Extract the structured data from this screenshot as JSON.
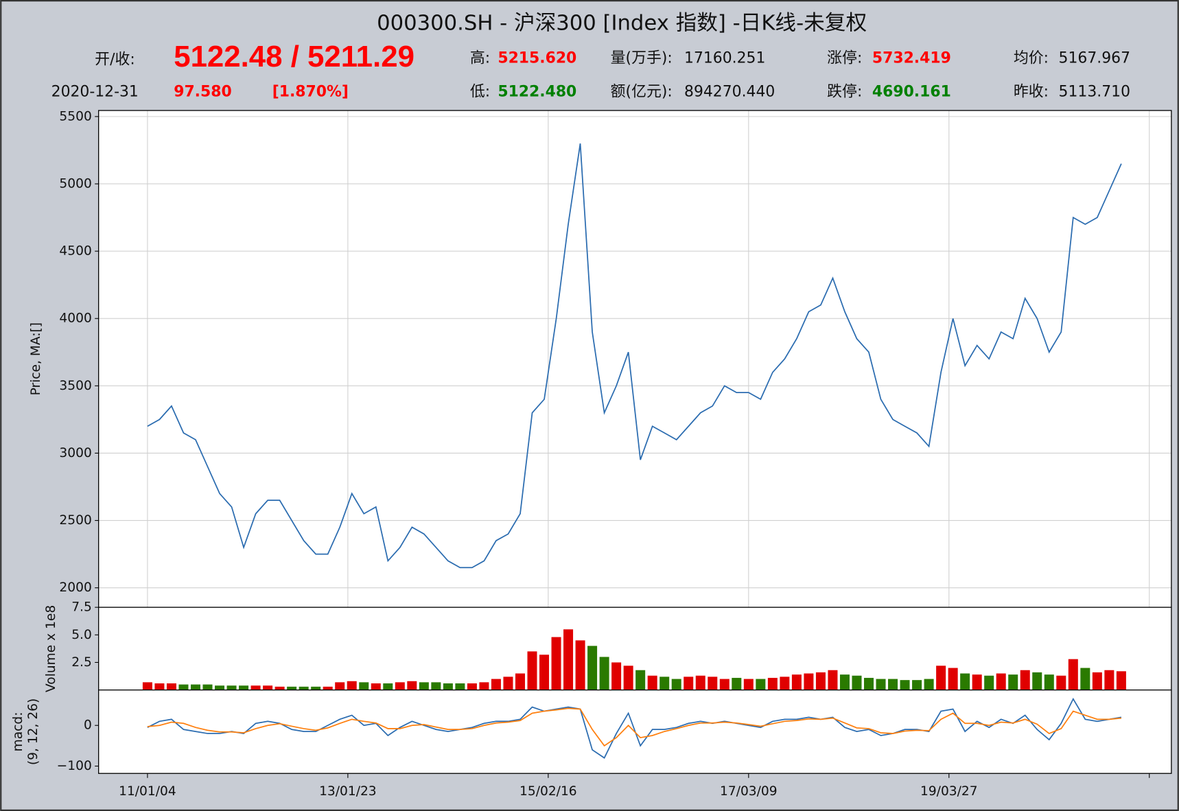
{
  "header": {
    "title": "000300.SH - 沪深300 [Index 指数] -日K线-未复权",
    "items": [
      "开/收:",
      "5122.48 / 5211.29",
      "高:",
      "5215.620",
      "量(万手):",
      "17160.251",
      "涨停:",
      "5732.419",
      "均价:",
      "5167.967",
      "2020-12-31",
      "97.580",
      "[1.870%]",
      "低:",
      "5122.480",
      "额(亿元):",
      "894270.440",
      "跌停:",
      "4690.161",
      "昨收:",
      "5113.710"
    ]
  },
  "chart_data": [
    {
      "type": "line",
      "ylabel": "Price, MA:[]",
      "color": "#2b6cb0",
      "grid": true,
      "xlim": [
        -122,
        2555
      ],
      "ylim": [
        1855,
        5545
      ],
      "yticks": [
        2000,
        2500,
        3000,
        3500,
        4000,
        4500,
        5000,
        5500
      ],
      "xticks": [
        0,
        500,
        1000,
        1500,
        2000,
        2500
      ],
      "x": [
        0,
        30,
        60,
        90,
        120,
        150,
        180,
        210,
        240,
        270,
        300,
        330,
        360,
        390,
        420,
        450,
        480,
        510,
        540,
        570,
        600,
        630,
        660,
        690,
        720,
        750,
        780,
        810,
        840,
        870,
        900,
        930,
        960,
        990,
        1020,
        1050,
        1080,
        1110,
        1140,
        1170,
        1200,
        1230,
        1260,
        1290,
        1320,
        1350,
        1380,
        1410,
        1440,
        1470,
        1500,
        1530,
        1560,
        1590,
        1620,
        1650,
        1680,
        1710,
        1740,
        1770,
        1800,
        1830,
        1860,
        1890,
        1920,
        1950,
        1980,
        2010,
        2040,
        2070,
        2100,
        2130,
        2160,
        2190,
        2220,
        2250,
        2280,
        2310,
        2340,
        2370,
        2400,
        2430
      ],
      "values": [
        3200,
        3250,
        3350,
        3150,
        3100,
        2900,
        2700,
        2600,
        2300,
        2550,
        2650,
        2650,
        2500,
        2350,
        2250,
        2250,
        2450,
        2700,
        2550,
        2600,
        2200,
        2300,
        2450,
        2400,
        2300,
        2200,
        2150,
        2150,
        2200,
        2350,
        2400,
        2550,
        3300,
        3400,
        4000,
        4700,
        5300,
        3900,
        3300,
        3500,
        3750,
        2950,
        3200,
        3150,
        3100,
        3200,
        3300,
        3350,
        3500,
        3450,
        3450,
        3400,
        3600,
        3700,
        3850,
        4050,
        4100,
        4300,
        4050,
        3850,
        3750,
        3400,
        3250,
        3200,
        3150,
        3050,
        3600,
        4000,
        3650,
        3800,
        3700,
        3900,
        3850,
        4150,
        4000,
        3750,
        3900,
        4750,
        4700,
        4750,
        4950,
        5150
      ]
    },
    {
      "type": "bar",
      "ylabel": "Volume x 1e8",
      "grid": false,
      "xlim": [
        -122,
        2555
      ],
      "ylim": [
        0,
        7.5
      ],
      "yticks": [
        2.5,
        {
          "value": 5,
          "label": "5.0"
        },
        7.5
      ],
      "x": [
        0,
        30,
        60,
        90,
        120,
        150,
        180,
        210,
        240,
        270,
        300,
        330,
        360,
        390,
        420,
        450,
        480,
        510,
        540,
        570,
        600,
        630,
        660,
        690,
        720,
        750,
        780,
        810,
        840,
        870,
        900,
        930,
        960,
        990,
        1020,
        1050,
        1080,
        1110,
        1140,
        1170,
        1200,
        1230,
        1260,
        1290,
        1320,
        1350,
        1380,
        1410,
        1440,
        1470,
        1500,
        1530,
        1560,
        1590,
        1620,
        1650,
        1680,
        1710,
        1740,
        1770,
        1800,
        1830,
        1860,
        1890,
        1920,
        1950,
        1980,
        2010,
        2040,
        2070,
        2100,
        2130,
        2160,
        2190,
        2220,
        2250,
        2280,
        2310,
        2340,
        2370,
        2400,
        2430
      ],
      "values": [
        0.7,
        0.6,
        0.6,
        0.5,
        0.5,
        0.5,
        0.4,
        0.4,
        0.4,
        0.4,
        0.4,
        0.3,
        0.3,
        0.3,
        0.3,
        0.3,
        0.7,
        0.8,
        0.7,
        0.6,
        0.6,
        0.7,
        0.8,
        0.7,
        0.7,
        0.6,
        0.6,
        0.6,
        0.7,
        1.0,
        1.2,
        1.5,
        3.5,
        3.2,
        4.8,
        5.5,
        4.5,
        4.0,
        3.0,
        2.5,
        2.2,
        1.8,
        1.3,
        1.2,
        1.0,
        1.2,
        1.3,
        1.2,
        1.0,
        1.1,
        1.0,
        1.0,
        1.1,
        1.2,
        1.4,
        1.5,
        1.6,
        1.8,
        1.4,
        1.3,
        1.1,
        1.0,
        1.0,
        0.9,
        0.9,
        1.0,
        2.2,
        2.0,
        1.5,
        1.4,
        1.3,
        1.5,
        1.4,
        1.8,
        1.6,
        1.4,
        1.3,
        2.8,
        2.0,
        1.6,
        1.8,
        1.7
      ],
      "colors": [
        "#e00000",
        "#e00000",
        "#e00000",
        "#2a7a00",
        "#2a7a00",
        "#2a7a00",
        "#2a7a00",
        "#2a7a00",
        "#2a7a00",
        "#e00000",
        "#e00000",
        "#e00000",
        "#2a7a00",
        "#2a7a00",
        "#2a7a00",
        "#e00000",
        "#e00000",
        "#e00000",
        "#2a7a00",
        "#e00000",
        "#2a7a00",
        "#e00000",
        "#e00000",
        "#2a7a00",
        "#2a7a00",
        "#2a7a00",
        "#2a7a00",
        "#e00000",
        "#e00000",
        "#e00000",
        "#e00000",
        "#e00000",
        "#e00000",
        "#e00000",
        "#e00000",
        "#e00000",
        "#e00000",
        "#2a7a00",
        "#2a7a00",
        "#e00000",
        "#e00000",
        "#2a7a00",
        "#e00000",
        "#2a7a00",
        "#2a7a00",
        "#e00000",
        "#e00000",
        "#e00000",
        "#e00000",
        "#2a7a00",
        "#e00000",
        "#2a7a00",
        "#e00000",
        "#e00000",
        "#e00000",
        "#e00000",
        "#e00000",
        "#e00000",
        "#2a7a00",
        "#2a7a00",
        "#2a7a00",
        "#2a7a00",
        "#2a7a00",
        "#2a7a00",
        "#2a7a00",
        "#2a7a00",
        "#e00000",
        "#e00000",
        "#2a7a00",
        "#e00000",
        "#2a7a00",
        "#e00000",
        "#2a7a00",
        "#e00000",
        "#2a7a00",
        "#2a7a00",
        "#e00000",
        "#e00000",
        "#2a7a00",
        "#e00000",
        "#e00000",
        "#e00000"
      ]
    },
    {
      "type": "line",
      "ylabel": [
        "macd:",
        "(9, 12, 26)"
      ],
      "grid": false,
      "xlim": [
        -122,
        2555
      ],
      "ylim": [
        -118,
        87
      ],
      "yticks": [
        {
          "value": -100,
          "label": "−100"
        },
        0
      ],
      "xticks": [
        {
          "value": 0,
          "label": "11/01/04"
        },
        {
          "value": 500,
          "label": "13/01/23"
        },
        {
          "value": 1000,
          "label": "15/02/16"
        },
        {
          "value": 1500,
          "label": "17/03/09"
        },
        {
          "value": 2000,
          "label": "19/03/27"
        },
        {
          "value": 2500,
          "label": null
        }
      ],
      "x": [
        0,
        30,
        60,
        90,
        120,
        150,
        180,
        210,
        240,
        270,
        300,
        330,
        360,
        390,
        420,
        450,
        480,
        510,
        540,
        570,
        600,
        630,
        660,
        690,
        720,
        750,
        780,
        810,
        840,
        870,
        900,
        930,
        960,
        990,
        1020,
        1050,
        1080,
        1110,
        1140,
        1170,
        1200,
        1230,
        1260,
        1290,
        1320,
        1350,
        1380,
        1410,
        1440,
        1470,
        1500,
        1530,
        1560,
        1590,
        1620,
        1650,
        1680,
        1710,
        1740,
        1770,
        1800,
        1830,
        1860,
        1890,
        1920,
        1950,
        1980,
        2010,
        2040,
        2070,
        2100,
        2130,
        2160,
        2190,
        2220,
        2250,
        2280,
        2310,
        2340,
        2370,
        2400,
        2430
      ],
      "series": [
        {
          "color": "#2b6cb0",
          "values": [
            -5,
            10,
            15,
            -10,
            -15,
            -20,
            -20,
            -15,
            -20,
            5,
            10,
            5,
            -10,
            -15,
            -15,
            0,
            15,
            25,
            0,
            5,
            -25,
            -5,
            10,
            0,
            -10,
            -15,
            -10,
            -5,
            5,
            10,
            10,
            15,
            45,
            35,
            40,
            45,
            40,
            -60,
            -80,
            -20,
            30,
            -50,
            -10,
            -10,
            -5,
            5,
            10,
            5,
            10,
            5,
            0,
            -5,
            10,
            15,
            15,
            20,
            15,
            20,
            -5,
            -15,
            -10,
            -25,
            -20,
            -10,
            -10,
            -15,
            35,
            40,
            -15,
            10,
            -5,
            15,
            5,
            25,
            -10,
            -35,
            5,
            65,
            15,
            10,
            15,
            20
          ]
        },
        {
          "color": "#ff7f0e",
          "values": [
            -3,
            0,
            8,
            5,
            -5,
            -12,
            -16,
            -16,
            -18,
            -8,
            0,
            4,
            -2,
            -8,
            -12,
            -6,
            5,
            15,
            10,
            6,
            -8,
            -8,
            0,
            2,
            -4,
            -10,
            -10,
            -8,
            0,
            6,
            8,
            12,
            30,
            35,
            38,
            42,
            40,
            -10,
            -50,
            -30,
            0,
            -30,
            -25,
            -15,
            -8,
            0,
            6,
            6,
            8,
            6,
            2,
            -2,
            4,
            10,
            12,
            16,
            15,
            18,
            6,
            -6,
            -8,
            -18,
            -20,
            -14,
            -12,
            -13,
            15,
            30,
            5,
            5,
            0,
            8,
            6,
            15,
            3,
            -20,
            -8,
            35,
            25,
            15,
            15,
            18
          ]
        }
      ]
    }
  ]
}
